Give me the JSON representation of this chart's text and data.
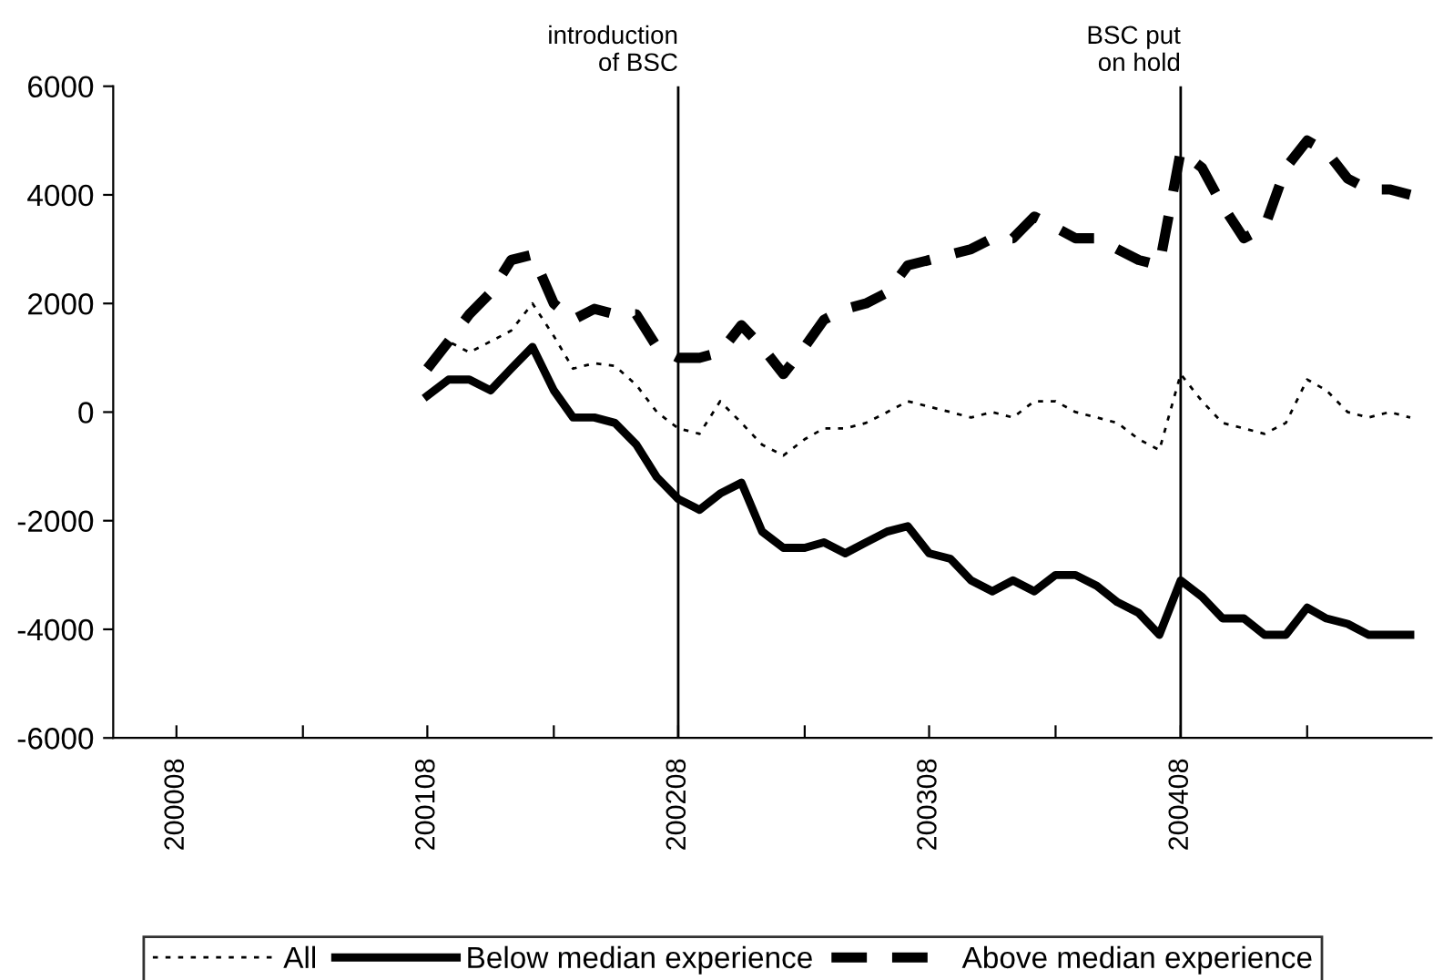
{
  "chart_data": {
    "type": "line",
    "x": [
      "2001-08",
      "2001-09",
      "2001-10",
      "2001-11",
      "2001-12",
      "2002-01",
      "2002-02",
      "2002-03",
      "2002-04",
      "2002-05",
      "2002-06",
      "2002-07",
      "2002-08",
      "2002-09",
      "2002-10",
      "2002-11",
      "2002-12",
      "2003-01",
      "2003-02",
      "2003-03",
      "2003-04",
      "2003-05",
      "2003-06",
      "2003-07",
      "2003-08",
      "2003-09",
      "2003-10",
      "2003-11",
      "2003-12",
      "2004-01",
      "2004-02",
      "2004-03",
      "2004-04",
      "2004-05",
      "2004-06",
      "2004-07",
      "2004-08",
      "2004-09",
      "2004-10",
      "2004-11",
      "2004-12",
      "2005-01",
      "2005-02",
      "2005-03",
      "2005-04",
      "2005-05",
      "2005-06",
      "2005-07"
    ],
    "series": [
      {
        "name": "All",
        "color": "#000000",
        "line_style": "dotted",
        "values": [
          800,
          1300,
          1100,
          1300,
          1500,
          2000,
          1400,
          800,
          900,
          850,
          500,
          0,
          -300,
          -400,
          200,
          -200,
          -600,
          -800,
          -500,
          -300,
          -300,
          -200,
          0,
          200,
          100,
          0,
          -100,
          0,
          -100,
          200,
          200,
          0,
          -100,
          -200,
          -500,
          -700,
          700,
          200,
          -200,
          -300,
          -400,
          -200,
          600,
          400,
          0,
          -100,
          0,
          -100
        ]
      },
      {
        "name": "Below median experience",
        "color": "#000000",
        "line_style": "solid",
        "values": [
          300,
          600,
          600,
          400,
          800,
          1200,
          400,
          -100,
          -100,
          -200,
          -600,
          -1200,
          -1600,
          -1800,
          -1500,
          -1300,
          -2200,
          -2500,
          -2500,
          -2400,
          -2600,
          -2400,
          -2200,
          -2100,
          -2600,
          -2700,
          -3100,
          -3300,
          -3100,
          -3300,
          -3000,
          -3000,
          -3200,
          -3500,
          -3700,
          -4100,
          -3100,
          -3400,
          -3800,
          -3800,
          -4100,
          -4100,
          -3600,
          -3800,
          -3900,
          -4100,
          -4100,
          -4100
        ]
      },
      {
        "name": "Above median experience",
        "color": "#000000",
        "line_style": "dashed",
        "values": [
          800,
          1300,
          1800,
          2200,
          2800,
          2900,
          2000,
          1700,
          1900,
          1800,
          1800,
          1200,
          1000,
          1000,
          1100,
          1600,
          1200,
          700,
          1200,
          1700,
          1900,
          2000,
          2200,
          2700,
          2800,
          2900,
          3000,
          3200,
          3200,
          3600,
          3400,
          3200,
          3200,
          3000,
          2800,
          2700,
          4800,
          4500,
          3800,
          3200,
          3400,
          4500,
          5000,
          4800,
          4300,
          4100,
          4100,
          4000
        ]
      }
    ],
    "xlim": [
      "2000-05",
      "2005-08"
    ],
    "xticks": [
      {
        "value": "2000-08",
        "label": "200008"
      },
      {
        "value": "2001-02",
        "label": null
      },
      {
        "value": "2001-08",
        "label": "200108"
      },
      {
        "value": "2002-02",
        "label": null
      },
      {
        "value": "2002-08",
        "label": "200208"
      },
      {
        "value": "2003-02",
        "label": null
      },
      {
        "value": "2003-08",
        "label": "200308"
      },
      {
        "value": "2004-02",
        "label": null
      },
      {
        "value": "2004-08",
        "label": "200408"
      },
      {
        "value": "2005-02",
        "label": null
      }
    ],
    "ylim": [
      -6000,
      6000
    ],
    "yticks": [
      -6000,
      -4000,
      -2000,
      0,
      2000,
      4000,
      6000
    ],
    "ref_lines": [
      {
        "axis": "x",
        "value": "2002-08",
        "label": "introduction\nof BSC",
        "color": "#000000"
      },
      {
        "axis": "x",
        "value": "2004-08",
        "label": "BSC put\non hold",
        "color": "#000000"
      }
    ],
    "grid": false,
    "legend": "bottom"
  }
}
